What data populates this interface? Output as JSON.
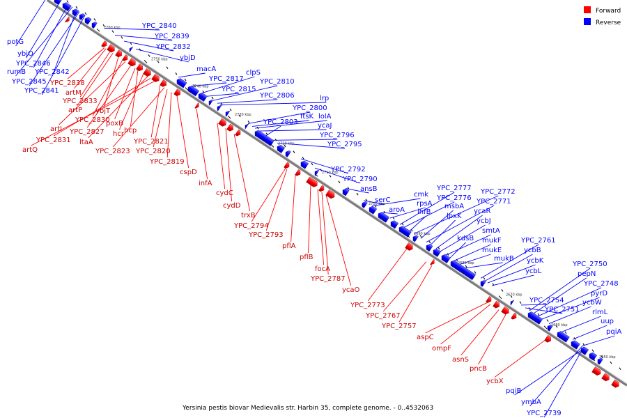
{
  "caption": "Yersinia pestis biovar Medievalis str. Harbin 35, complete genome. - 0..4532063",
  "legend": [
    {
      "label": "Forward",
      "color": "#ff0000"
    },
    {
      "label": "Reverse",
      "color": "#0000ff"
    }
  ],
  "colors": {
    "forward": "#ff0000",
    "reverse": "#0000ff",
    "axis": "#888888"
  },
  "ticks": [
    "2760 kbp",
    "2750 kbp",
    "2740 kbp",
    "2730 kbp",
    "2720 kbp",
    "2710 kbp",
    "2700 kbp",
    "2690 kbp",
    "2680 kbp",
    "2670 kbp",
    "2660 kbp",
    "2650 kbp"
  ],
  "genes": {
    "reverse": [
      "YPC_2840",
      "YPC_2839",
      "potG",
      "YPC_2832",
      "ybjO",
      "ybjD",
      "YPC_2846",
      "rumB",
      "YPC_2842",
      "YPC_2845",
      "YPC_2841",
      "macA",
      "YPC_2817",
      "clpS",
      "YPC_2815",
      "YPC_2810",
      "YPC_2806",
      "lrp",
      "YPC_2800",
      "ftsK",
      "lolA",
      "ycaJ",
      "YPC_2803",
      "YPC_2796",
      "YPC_2795",
      "YPC_2792",
      "YPC_2790",
      "ansB",
      "serC",
      "cmk",
      "aroA",
      "rpsA",
      "YPC_2777",
      "YPC_2776",
      "YPC_2772",
      "ihfB",
      "msbA",
      "YPC_2771",
      "lpxK",
      "ycaR",
      "ycbJ",
      "smtA",
      "kdsB",
      "mukF",
      "mukE",
      "mukB",
      "YPC_2761",
      "ycbB",
      "ycbK",
      "ycbL",
      "YPC_2750",
      "pepN",
      "YPC_2748",
      "pyrD",
      "ycbW",
      "YPC_2754",
      "YPC_2751",
      "rlmL",
      "uup",
      "pqiA",
      "pqiB",
      "ymbA",
      "YPC_2739"
    ],
    "forward": [
      "YPC_2838",
      "artM",
      "YPC_2833",
      "artP",
      "ybjT",
      "YPC_2830",
      "artI",
      "YPC_2827",
      "poxB",
      "hcp",
      "hcr",
      "ltaA",
      "YPC_2831",
      "artQ",
      "YPC_2821",
      "YPC_2823",
      "YPC_2820",
      "YPC_2819",
      "cspD",
      "infA",
      "cydC",
      "cydD",
      "trxB",
      "YPC_2794",
      "YPC_2793",
      "pflA",
      "pflB",
      "focA",
      "YPC_2787",
      "ycaO",
      "YPC_2773",
      "YPC_2767",
      "YPC_2757",
      "aspC",
      "ompF",
      "asnS",
      "pncB",
      "ycbX"
    ]
  }
}
